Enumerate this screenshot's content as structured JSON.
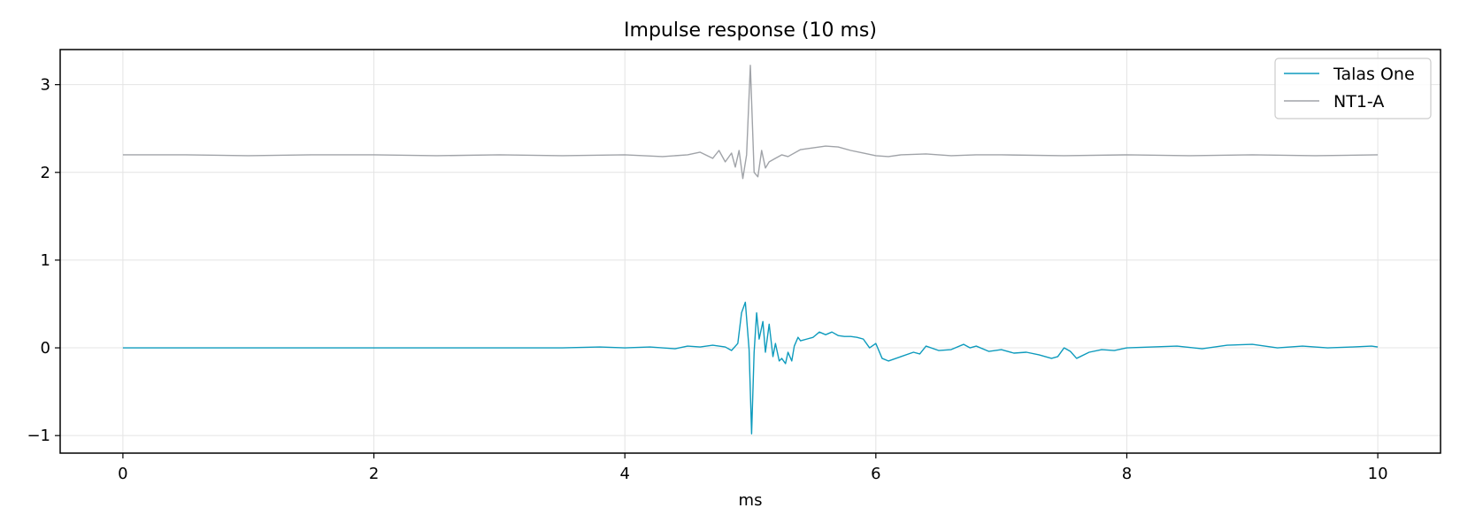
{
  "chart_data": {
    "type": "line",
    "title": "Impulse response (10 ms)",
    "xlabel": "ms",
    "ylabel": "",
    "xlim": [
      -0.5,
      10.5
    ],
    "ylim": [
      -1.2,
      3.4
    ],
    "x_ticks": [
      0,
      2,
      4,
      6,
      8,
      10
    ],
    "y_ticks": [
      -1,
      0,
      1,
      2,
      3
    ],
    "x_tick_labels": [
      "0",
      "2",
      "4",
      "6",
      "8",
      "10"
    ],
    "y_tick_labels": [
      "−1",
      "0",
      "1",
      "2",
      "3"
    ],
    "grid": true,
    "legend_position": "top-right",
    "series": [
      {
        "name": "Talas One",
        "color": "#0e9bbd",
        "x": [
          0.0,
          0.5,
          1.0,
          1.5,
          2.0,
          2.5,
          3.0,
          3.5,
          3.8,
          4.0,
          4.2,
          4.4,
          4.5,
          4.6,
          4.7,
          4.8,
          4.85,
          4.9,
          4.93,
          4.96,
          4.99,
          5.01,
          5.03,
          5.05,
          5.07,
          5.1,
          5.12,
          5.15,
          5.18,
          5.2,
          5.23,
          5.25,
          5.28,
          5.3,
          5.33,
          5.35,
          5.38,
          5.4,
          5.45,
          5.5,
          5.55,
          5.6,
          5.65,
          5.7,
          5.75,
          5.8,
          5.85,
          5.9,
          5.95,
          6.0,
          6.05,
          6.1,
          6.2,
          6.3,
          6.35,
          6.4,
          6.5,
          6.6,
          6.7,
          6.75,
          6.8,
          6.9,
          7.0,
          7.1,
          7.2,
          7.3,
          7.4,
          7.45,
          7.5,
          7.55,
          7.6,
          7.7,
          7.8,
          7.9,
          8.0,
          8.2,
          8.4,
          8.6,
          8.8,
          9.0,
          9.2,
          9.4,
          9.6,
          9.8,
          9.95,
          10.0
        ],
        "y": [
          0.0,
          0.0,
          0.0,
          0.0,
          0.0,
          0.0,
          0.0,
          0.0,
          0.01,
          0.0,
          0.01,
          -0.01,
          0.02,
          0.01,
          0.03,
          0.01,
          -0.03,
          0.05,
          0.4,
          0.52,
          -0.02,
          -0.98,
          -0.05,
          0.4,
          0.1,
          0.3,
          -0.05,
          0.27,
          -0.1,
          0.05,
          -0.15,
          -0.12,
          -0.18,
          -0.05,
          -0.15,
          0.02,
          0.12,
          0.08,
          0.1,
          0.12,
          0.18,
          0.15,
          0.18,
          0.14,
          0.13,
          0.13,
          0.12,
          0.1,
          0.0,
          0.05,
          -0.12,
          -0.15,
          -0.1,
          -0.05,
          -0.07,
          0.02,
          -0.03,
          -0.02,
          0.04,
          0.0,
          0.02,
          -0.04,
          -0.02,
          -0.06,
          -0.05,
          -0.08,
          -0.12,
          -0.1,
          0.0,
          -0.04,
          -0.12,
          -0.05,
          -0.02,
          -0.03,
          0.0,
          0.01,
          0.02,
          -0.01,
          0.03,
          0.04,
          0.0,
          0.02,
          0.0,
          0.01,
          0.02,
          0.01
        ]
      },
      {
        "name": "NT1-A",
        "color": "#a0a3a8",
        "x": [
          0.0,
          0.5,
          1.0,
          1.5,
          2.0,
          2.5,
          3.0,
          3.5,
          4.0,
          4.3,
          4.5,
          4.6,
          4.7,
          4.75,
          4.8,
          4.85,
          4.88,
          4.91,
          4.94,
          4.97,
          5.0,
          5.03,
          5.06,
          5.09,
          5.12,
          5.15,
          5.2,
          5.25,
          5.3,
          5.4,
          5.5,
          5.6,
          5.7,
          5.8,
          5.9,
          6.0,
          6.1,
          6.2,
          6.4,
          6.6,
          6.8,
          7.0,
          7.5,
          8.0,
          8.5,
          9.0,
          9.5,
          10.0
        ],
        "y": [
          2.2,
          2.2,
          2.19,
          2.2,
          2.2,
          2.19,
          2.2,
          2.19,
          2.2,
          2.18,
          2.2,
          2.23,
          2.16,
          2.25,
          2.12,
          2.22,
          2.06,
          2.25,
          1.93,
          2.2,
          3.22,
          2.0,
          1.95,
          2.25,
          2.05,
          2.12,
          2.16,
          2.2,
          2.18,
          2.26,
          2.28,
          2.3,
          2.29,
          2.25,
          2.22,
          2.19,
          2.18,
          2.2,
          2.21,
          2.19,
          2.2,
          2.2,
          2.19,
          2.2,
          2.19,
          2.2,
          2.19,
          2.2
        ]
      }
    ]
  }
}
